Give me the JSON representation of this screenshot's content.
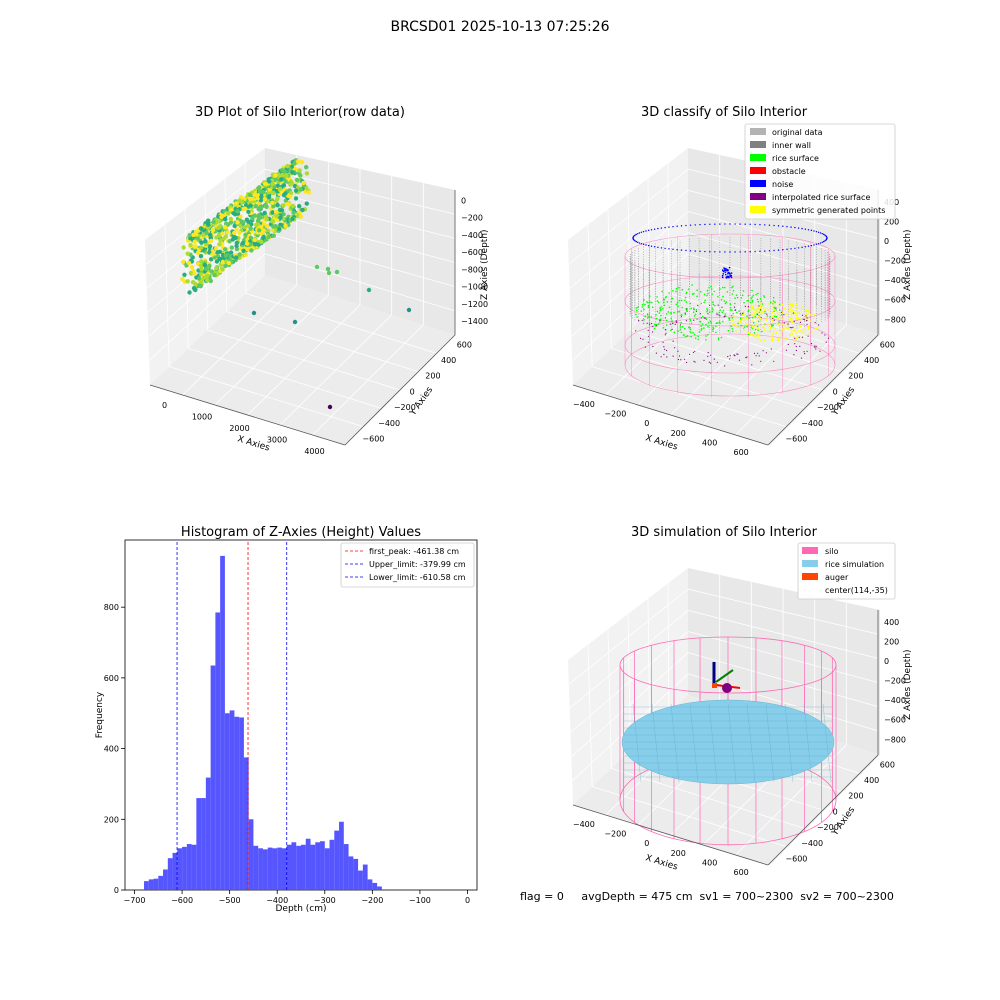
{
  "figure_title": "BRCSD01 2025-10-13 07:25:26",
  "status_line": "flag = 0     avgDepth = 475 cm  sv1 = 700~2300  sv2 = 700~2300",
  "colors": {
    "hist_bar": "#4d4dff",
    "peak_line": "#ff0000",
    "limit_line": "#0000ff",
    "silo": "#ff69b4",
    "rice_simulation": "#87ceeb",
    "auger": "#ff4500",
    "rice_surface": "#00ff00",
    "noise": "#0000ff",
    "inner_wall": "#808080",
    "symmetric": "#ffff00",
    "interpolated": "#800080"
  },
  "chart_data": [
    {
      "type": "scatter",
      "projection": "3d",
      "title": "3D Plot of Silo Interior(row data)",
      "xlabel": "X Axies",
      "ylabel": "Y Axies",
      "zlabel": "Z Axies (Depth)",
      "x_ticks": [
        "0",
        "1000",
        "2000",
        "3000",
        "4000"
      ],
      "y_ticks": [
        "600",
        "400",
        "200",
        "0",
        "−200",
        "−400",
        "−600"
      ],
      "z_ticks": [
        "0",
        "−200",
        "−400",
        "−600",
        "−800",
        "−1000",
        "−1200",
        "−1400"
      ],
      "colormap": "viridis",
      "grid": true
    },
    {
      "type": "scatter",
      "projection": "3d",
      "title": "3D classify of Silo Interior",
      "xlabel": "X Axies",
      "ylabel": "Y Axies",
      "zlabel": "Z Axies (Depth)",
      "x_ticks": [
        "−400",
        "−200",
        "0",
        "200",
        "400",
        "600"
      ],
      "y_ticks": [
        "600",
        "400",
        "200",
        "0",
        "−200",
        "−400",
        "−600"
      ],
      "z_ticks": [
        "400",
        "200",
        "0",
        "−200",
        "−400",
        "−600",
        "−800"
      ],
      "legend_position": "top-right",
      "legend": [
        {
          "label": "original data",
          "color": "#b3b3b3"
        },
        {
          "label": "inner wall",
          "color": "#808080"
        },
        {
          "label": "rice surface",
          "color": "#00ff00"
        },
        {
          "label": "obstacle",
          "color": "#ff0000"
        },
        {
          "label": "noise",
          "color": "#0000ff"
        },
        {
          "label": "interpolated rice surface",
          "color": "#800080"
        },
        {
          "label": "symmetric generated points",
          "color": "#ffff00"
        }
      ],
      "grid": true
    },
    {
      "type": "bar",
      "subtype": "histogram",
      "title": "Histogram of Z-Axies (Height) Values",
      "xlabel": "Depth (cm)",
      "ylabel": "Frequency",
      "xlim": [
        -720,
        20
      ],
      "ylim": [
        0,
        990
      ],
      "x_ticks": [
        -700,
        -600,
        -500,
        -400,
        -300,
        -200,
        -100,
        0
      ],
      "y_ticks": [
        0,
        200,
        400,
        600,
        800
      ],
      "bin_start": -680,
      "bin_width": 10,
      "values": [
        25,
        30,
        32,
        40,
        58,
        90,
        105,
        118,
        122,
        130,
        128,
        260,
        260,
        318,
        635,
        785,
        945,
        500,
        508,
        490,
        488,
        375,
        200,
        125,
        118,
        115,
        120,
        118,
        120,
        118,
        128,
        135,
        125,
        128,
        145,
        128,
        135,
        138,
        118,
        142,
        168,
        193,
        130,
        95,
        88,
        55,
        72,
        30,
        20,
        10
      ],
      "vlines": [
        {
          "label": "first_peak: -461.38 cm",
          "x": -461.38,
          "style": "dashed",
          "color": "#ff0000"
        },
        {
          "label": "Upper_limit: -379.99 cm",
          "x": -379.99,
          "style": "dashed",
          "color": "#0000ff"
        },
        {
          "label": "Lower_limit: -610.58 cm",
          "x": -610.58,
          "style": "dashed",
          "color": "#0000ff"
        }
      ],
      "legend_position": "top-right"
    },
    {
      "type": "scatter",
      "projection": "3d",
      "title": "3D simulation of Silo Interior",
      "xlabel": "X Axies",
      "ylabel": "Y Axies",
      "zlabel": "Z Axies (Depth)",
      "x_ticks": [
        "−400",
        "−200",
        "0",
        "200",
        "400",
        "600"
      ],
      "y_ticks": [
        "600",
        "400",
        "200",
        "0",
        "−200",
        "−400",
        "−600"
      ],
      "z_ticks": [
        "400",
        "200",
        "0",
        "−200",
        "−400",
        "−600",
        "−800"
      ],
      "legend_position": "top-right",
      "legend": [
        {
          "label": "silo",
          "color": "#ff69b4"
        },
        {
          "label": "rice simulation",
          "color": "#87ceeb"
        },
        {
          "label": "auger",
          "color": "#ff4500"
        },
        {
          "label": "center(114,-35)",
          "color": ""
        }
      ],
      "grid": true
    }
  ]
}
